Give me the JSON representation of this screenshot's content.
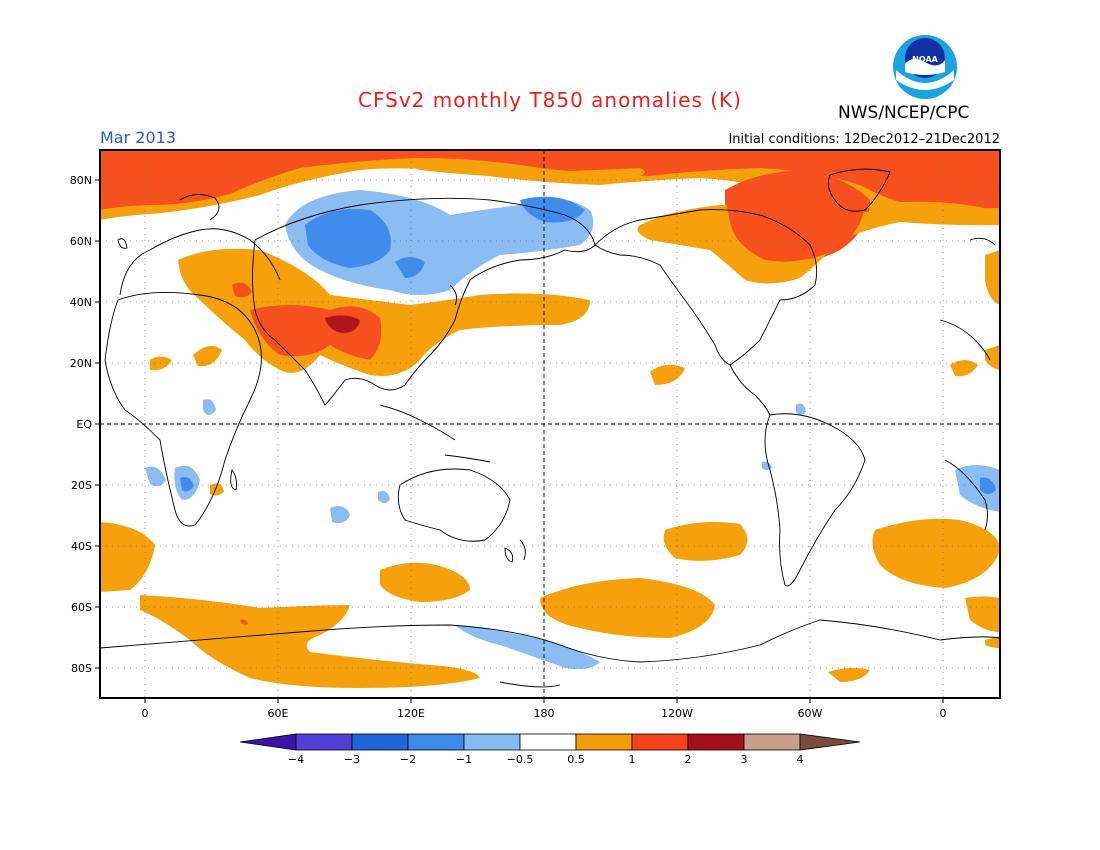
{
  "header": {
    "title": "CFSv2 monthly T850 anomalies (K)",
    "agency": "NWS/NCEP/CPC",
    "logo_text": "NOAA",
    "month": "Mar 2013",
    "initial_conditions": "Initial conditions: 12Dec2012–21Dec2012"
  },
  "map": {
    "lat_labels": [
      "80N",
      "60N",
      "40N",
      "20N",
      "EQ",
      "20S",
      "40S",
      "60S",
      "80S"
    ],
    "lon_labels": [
      "0",
      "60E",
      "120E",
      "180",
      "120W",
      "60W",
      "0"
    ],
    "colors": {
      "lt_-3": "#2d1bbf",
      "n3_n2": "#5a44d8",
      "n2_n1": "#2f72d8",
      "n1_n05b": "#3f8cec",
      "n1_n05": "#8bbcf2",
      "neutral": "#ffffff",
      "p05_1": "#f6a10c",
      "p1_2": "#f6501e",
      "p2_3": "#b0141c",
      "p3_4": "#c9a08c",
      "gt_4": "#7a4a3e"
    }
  },
  "colorbar": {
    "ticks": [
      "−4",
      "−3",
      "−2",
      "−1",
      "−0.5",
      "0.5",
      "1",
      "2",
      "3",
      "4"
    ],
    "colors": [
      "#3a14a6",
      "#5040d6",
      "#1f66d8",
      "#3d8ae8",
      "#86baf2",
      "#ffffff",
      "#f59c0b",
      "#f5421a",
      "#a3101b",
      "#c79f8b",
      "#7a4a3e"
    ]
  }
}
